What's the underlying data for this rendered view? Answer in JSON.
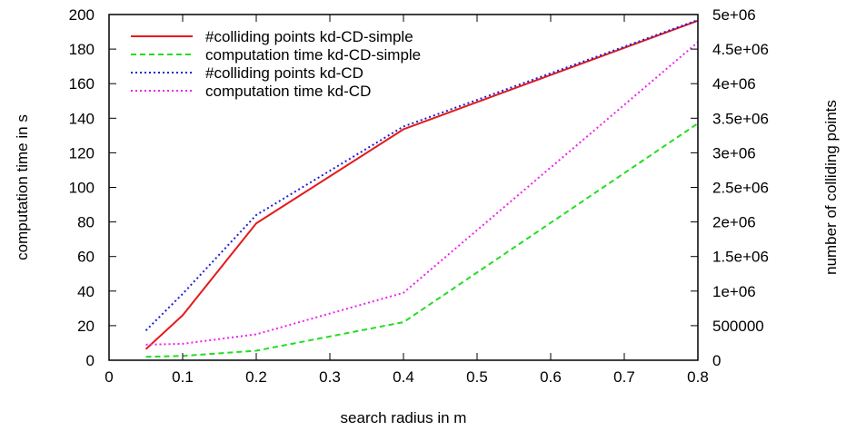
{
  "chart_data": {
    "type": "line",
    "xlabel": "search radius in m",
    "ylabel_left": "computation time in s",
    "ylabel_right": "number of colliding points",
    "xlim": [
      0,
      0.8
    ],
    "ylim_left": [
      0,
      200
    ],
    "ylim_right": [
      0,
      5000000
    ],
    "x_ticks": [
      "0",
      "0.1",
      "0.2",
      "0.3",
      "0.4",
      "0.5",
      "0.6",
      "0.7",
      "0.8"
    ],
    "y_ticks_left": [
      "0",
      "20",
      "40",
      "60",
      "80",
      "100",
      "120",
      "140",
      "160",
      "180",
      "200"
    ],
    "y_ticks_right": [
      "0",
      "500000",
      "1e+06",
      "1.5e+06",
      "2e+06",
      "2.5e+06",
      "3e+06",
      "3.5e+06",
      "4e+06",
      "4.5e+06",
      "5e+06"
    ],
    "grid": false,
    "legend_position": "top-left",
    "series": [
      {
        "name": "#colliding points kd-CD-simple",
        "axis": "right",
        "color": "#e41a1c",
        "dash": "solid",
        "x": [
          0.05,
          0.1,
          0.2,
          0.4,
          0.8
        ],
        "y": [
          160000,
          650000,
          1980000,
          3340000,
          4910000
        ]
      },
      {
        "name": "computation time kd-CD-simple",
        "axis": "left",
        "color": "#22dd22",
        "dash": "dashed",
        "x": [
          0.05,
          0.1,
          0.2,
          0.4,
          0.8
        ],
        "y": [
          2,
          2.5,
          5.5,
          22,
          137
        ]
      },
      {
        "name": "#colliding points kd-CD",
        "axis": "right",
        "color": "#1f1fd6",
        "dash": "dotted",
        "x": [
          0.05,
          0.1,
          0.2,
          0.4,
          0.8
        ],
        "y": [
          430000,
          960000,
          2100000,
          3380000,
          4920000
        ]
      },
      {
        "name": "computation time kd-CD",
        "axis": "left",
        "color": "#ee22ee",
        "dash": "dotted",
        "x": [
          0.05,
          0.1,
          0.2,
          0.4,
          0.8
        ],
        "y": [
          9,
          9.5,
          15,
          39,
          184
        ]
      }
    ]
  }
}
